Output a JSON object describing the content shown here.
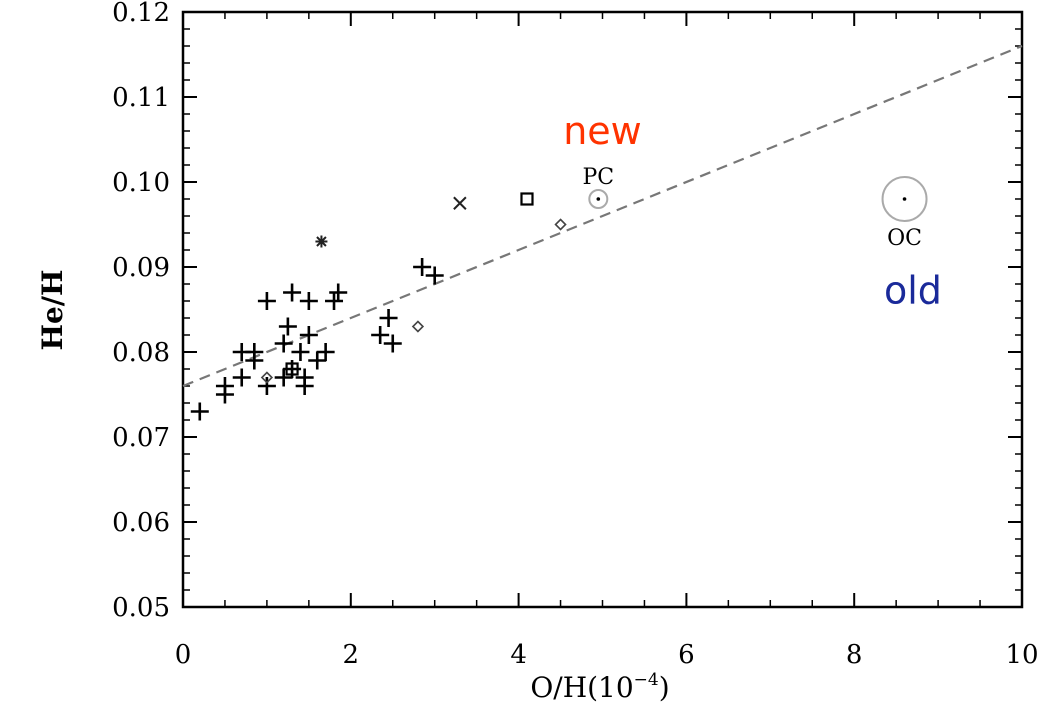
{
  "chart_data": {
    "type": "scatter",
    "xlabel": "O/H(10",
    "xlabel_exp": "−4",
    "xlabel_close": ")",
    "ylabel": "He/H",
    "xlim": [
      0,
      10
    ],
    "ylim": [
      0.05,
      0.12
    ],
    "xticks": [
      0,
      2,
      4,
      6,
      8,
      10
    ],
    "xtick_labels": [
      "0",
      "2",
      "4",
      "6",
      "8",
      "10"
    ],
    "yticks": [
      0.05,
      0.06,
      0.07,
      0.08,
      0.09,
      0.1,
      0.11,
      0.12
    ],
    "ytick_labels": [
      "0.05",
      "0.06",
      "0.07",
      "0.08",
      "0.09",
      "0.10",
      "0.11",
      "0.12"
    ],
    "grid": false,
    "plus_points": [
      {
        "x": 0.2,
        "y": 0.073
      },
      {
        "x": 0.5,
        "y": 0.075
      },
      {
        "x": 0.5,
        "y": 0.076
      },
      {
        "x": 0.7,
        "y": 0.077
      },
      {
        "x": 0.7,
        "y": 0.08
      },
      {
        "x": 0.85,
        "y": 0.079
      },
      {
        "x": 0.85,
        "y": 0.08
      },
      {
        "x": 1.0,
        "y": 0.076
      },
      {
        "x": 1.0,
        "y": 0.086
      },
      {
        "x": 1.2,
        "y": 0.077
      },
      {
        "x": 1.2,
        "y": 0.081
      },
      {
        "x": 1.25,
        "y": 0.083
      },
      {
        "x": 1.3,
        "y": 0.087
      },
      {
        "x": 1.3,
        "y": 0.078
      },
      {
        "x": 1.4,
        "y": 0.08
      },
      {
        "x": 1.45,
        "y": 0.076
      },
      {
        "x": 1.45,
        "y": 0.077
      },
      {
        "x": 1.5,
        "y": 0.082
      },
      {
        "x": 1.5,
        "y": 0.086
      },
      {
        "x": 1.6,
        "y": 0.079
      },
      {
        "x": 1.7,
        "y": 0.08
      },
      {
        "x": 1.8,
        "y": 0.086
      },
      {
        "x": 1.85,
        "y": 0.087
      },
      {
        "x": 2.35,
        "y": 0.082
      },
      {
        "x": 2.45,
        "y": 0.084
      },
      {
        "x": 2.5,
        "y": 0.081
      },
      {
        "x": 2.85,
        "y": 0.09
      },
      {
        "x": 3.0,
        "y": 0.089
      }
    ],
    "diamond_points": [
      {
        "x": 1.0,
        "y": 0.077
      },
      {
        "x": 2.8,
        "y": 0.083
      },
      {
        "x": 4.5,
        "y": 0.095
      }
    ],
    "square_points": [
      {
        "x": 1.3,
        "y": 0.078
      },
      {
        "x": 4.1,
        "y": 0.098
      }
    ],
    "x_points": [
      {
        "x": 3.3,
        "y": 0.0975
      }
    ],
    "star_points": [
      {
        "x": 1.65,
        "y": 0.093
      }
    ],
    "circle_points": [
      {
        "x": 4.95,
        "y": 0.098,
        "label": "PC",
        "size": "small"
      },
      {
        "x": 8.6,
        "y": 0.098,
        "label": "OC",
        "size": "large"
      }
    ],
    "fit_line": {
      "x": [
        0.0,
        10.0
      ],
      "y": [
        0.076,
        0.116
      ],
      "style": "dashed"
    },
    "annotations": [
      {
        "text": "new",
        "x": 5.0,
        "y": 0.1045,
        "color": "#ff3300"
      },
      {
        "text": "old",
        "x": 8.7,
        "y": 0.0857,
        "color": "#1a2a9a"
      }
    ],
    "colors": {
      "marker": "#000000",
      "fit_line": "#777777",
      "circle": "#aaaaaa"
    }
  }
}
